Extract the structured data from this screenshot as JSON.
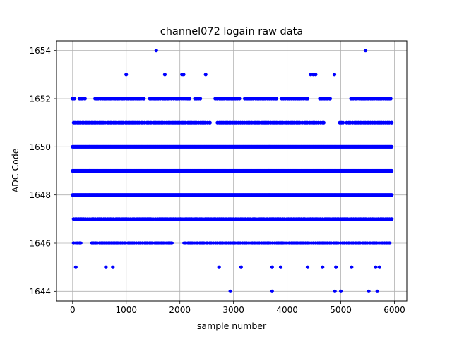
{
  "chart_data": {
    "type": "scatter",
    "title": "channel072 logain raw data",
    "xlabel": "sample number",
    "ylabel": "ADC Code",
    "xlim": [
      -300,
      6230
    ],
    "ylim": [
      1643.6,
      1654.4
    ],
    "xticks": [
      0,
      1000,
      2000,
      3000,
      4000,
      5000,
      6000
    ],
    "yticks": [
      1644,
      1646,
      1648,
      1650,
      1652,
      1654
    ],
    "grid": true,
    "marker_color": "#0000ff",
    "sample_count": 5950,
    "dense_levels": [
      1648,
      1649,
      1650
    ],
    "sparse_points": {
      "1654": [
        1560,
        5460
      ],
      "1653": [
        1000,
        1720,
        2040,
        2070,
        2480,
        4440,
        4490,
        4530,
        4880
      ],
      "1644": [
        2940,
        3720,
        4890,
        5000,
        5520,
        5680
      ],
      "1645": [
        60,
        620,
        750,
        2730,
        3140,
        3720,
        3880,
        4380,
        4660,
        4910,
        5200,
        5650,
        5720
      ]
    },
    "level_ranges": {
      "1652": [
        [
          0,
          30
        ],
        [
          130,
          230
        ],
        [
          420,
          1330
        ],
        [
          1440,
          2180
        ],
        [
          2280,
          2380
        ],
        [
          2660,
          3110
        ],
        [
          3210,
          3800
        ],
        [
          3900,
          4380
        ],
        [
          4610,
          4800
        ],
        [
          5190,
          5930
        ]
      ],
      "1651": [
        [
          20,
          2560
        ],
        [
          2700,
          4680
        ],
        [
          4980,
          5040
        ],
        [
          5110,
          5950
        ]
      ],
      "1647": [
        [
          20,
          5950
        ]
      ],
      "1646": [
        [
          20,
          150
        ],
        [
          360,
          1850
        ],
        [
          2080,
          5910
        ]
      ]
    }
  }
}
